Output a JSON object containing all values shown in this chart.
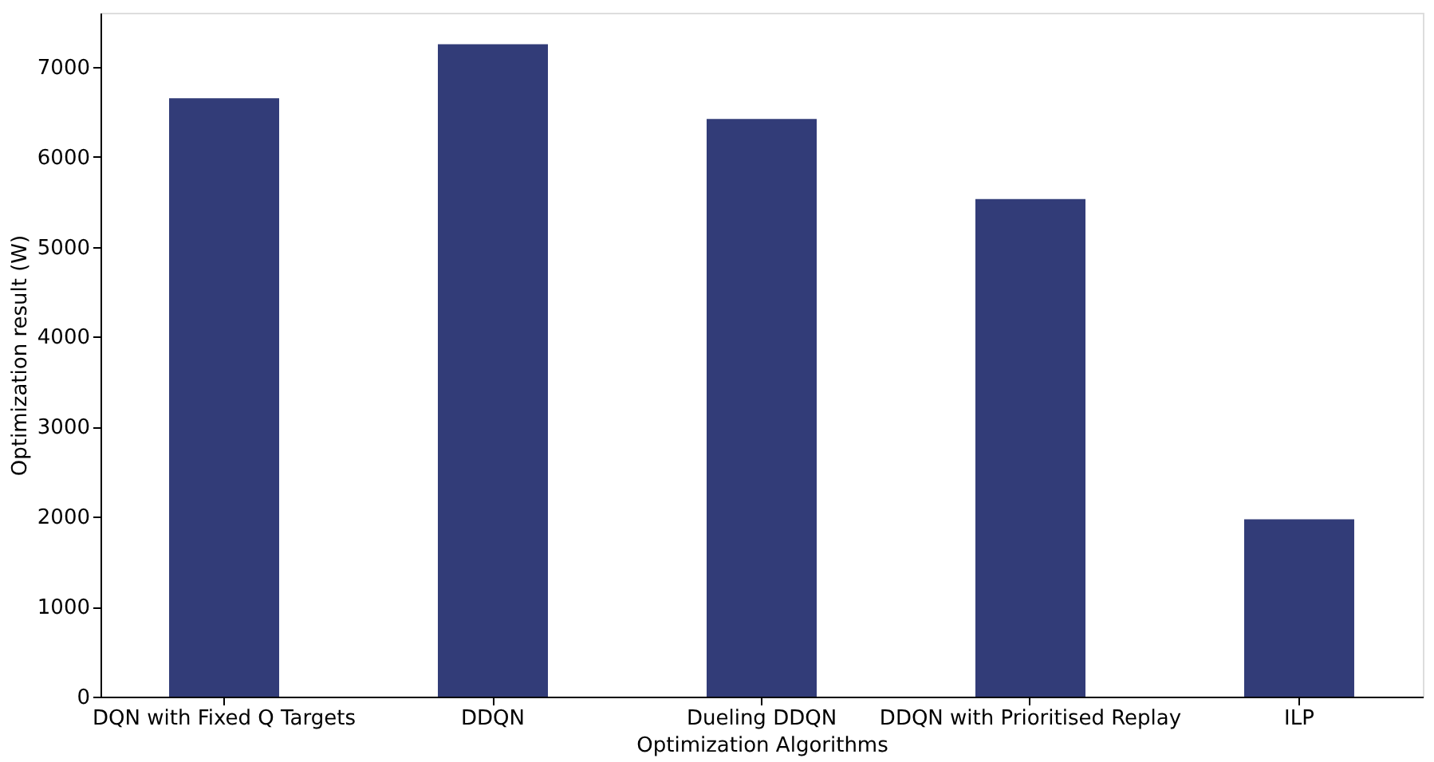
{
  "chart_data": {
    "type": "bar",
    "categories": [
      "DQN with Fixed Q Targets",
      "DDQN",
      "Dueling DDQN",
      "DDQN with Prioritised Replay",
      "ILP"
    ],
    "values": [
      6650,
      7250,
      6420,
      5530,
      1970
    ],
    "color": "#323c78",
    "xlabel": "Optimization Algorithms",
    "ylabel": "Optimization result (W)",
    "ylim": [
      0,
      7600
    ],
    "yticks": [
      0,
      1000,
      2000,
      3000,
      4000,
      5000,
      6000,
      7000
    ],
    "grid": false
  }
}
